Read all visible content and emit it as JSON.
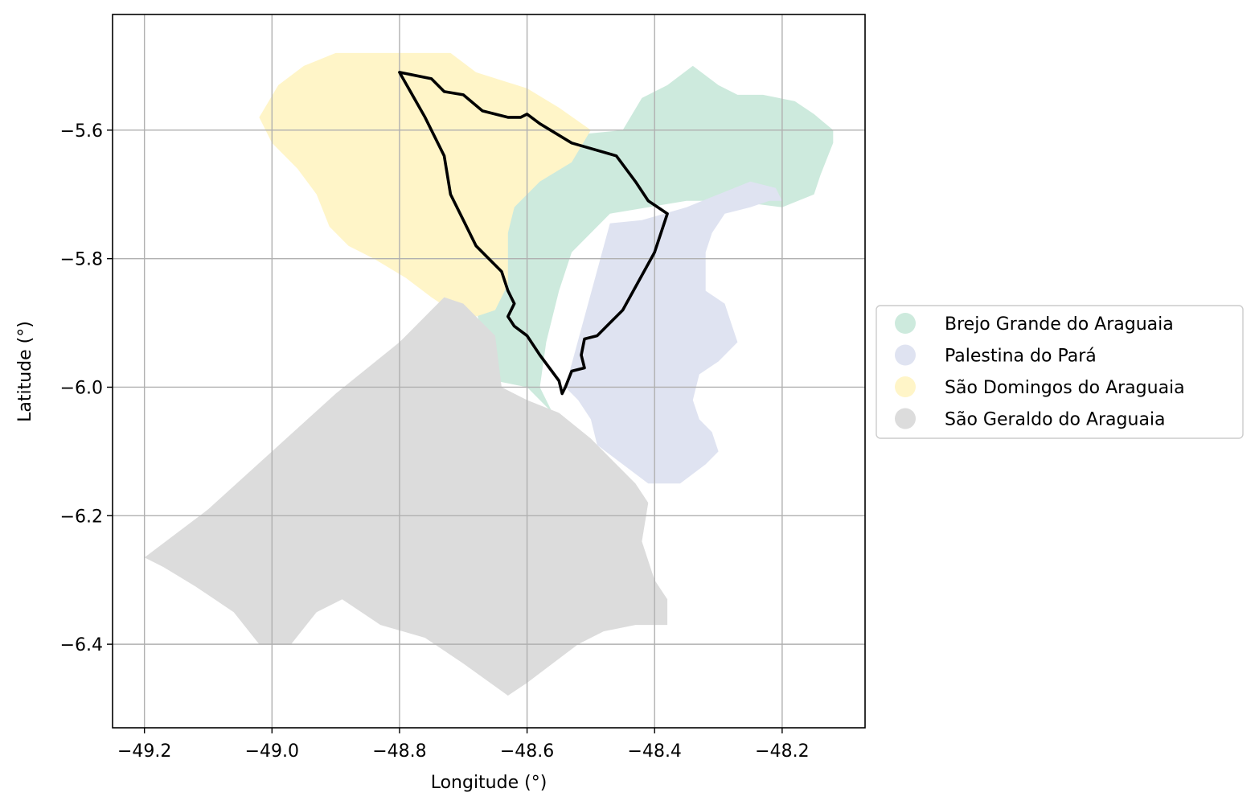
{
  "chart_data": {
    "type": "map",
    "xlabel": "Longitude (°)",
    "ylabel": "Latitude (°)",
    "xlim": [
      -49.25,
      -48.07
    ],
    "ylim": [
      -6.53,
      -5.42
    ],
    "xticks": [
      -49.2,
      -49.0,
      -48.8,
      -48.6,
      -48.4,
      -48.2
    ],
    "yticks": [
      -5.6,
      -5.8,
      -6.0,
      -6.2,
      -6.4
    ],
    "xtick_labels": [
      "−49.2",
      "−49.0",
      "−48.8",
      "−48.6",
      "−48.4",
      "−48.2"
    ],
    "ytick_labels": [
      "−5.6",
      "−5.8",
      "−6.0",
      "−6.2",
      "−6.4"
    ],
    "grid": true,
    "legend_position": "right",
    "regions": [
      {
        "name": "Brejo Grande do Araguaia",
        "color": "#cdeadd",
        "polygon": [
          [
            -48.73,
            -5.64
          ],
          [
            -48.66,
            -5.62
          ],
          [
            -48.55,
            -5.61
          ],
          [
            -48.45,
            -5.6
          ],
          [
            -48.42,
            -5.55
          ],
          [
            -48.38,
            -5.53
          ],
          [
            -48.34,
            -5.5
          ],
          [
            -48.3,
            -5.53
          ],
          [
            -48.27,
            -5.545
          ],
          [
            -48.23,
            -5.545
          ],
          [
            -48.18,
            -5.555
          ],
          [
            -48.15,
            -5.575
          ],
          [
            -48.12,
            -5.6
          ],
          [
            -48.12,
            -5.62
          ],
          [
            -48.14,
            -5.67
          ],
          [
            -48.15,
            -5.7
          ],
          [
            -48.2,
            -5.72
          ],
          [
            -48.28,
            -5.71
          ],
          [
            -48.35,
            -5.71
          ],
          [
            -48.41,
            -5.72
          ],
          [
            -48.47,
            -5.73
          ],
          [
            -48.53,
            -5.79
          ],
          [
            -48.55,
            -5.85
          ],
          [
            -48.57,
            -5.93
          ],
          [
            -48.58,
            -6.0
          ],
          [
            -48.56,
            -6.04
          ],
          [
            -48.6,
            -6.0
          ],
          [
            -48.65,
            -5.99
          ],
          [
            -48.68,
            -5.88
          ],
          [
            -48.65,
            -5.8
          ],
          [
            -48.62,
            -5.72
          ]
        ]
      },
      {
        "name": "Palestina do Pará",
        "color": "#dfe3f1",
        "polygon": [
          [
            -48.47,
            -5.745
          ],
          [
            -48.42,
            -5.74
          ],
          [
            -48.35,
            -5.72
          ],
          [
            -48.3,
            -5.7
          ],
          [
            -48.25,
            -5.68
          ],
          [
            -48.21,
            -5.69
          ],
          [
            -48.2,
            -5.71
          ],
          [
            -48.22,
            -5.71
          ],
          [
            -48.25,
            -5.72
          ],
          [
            -48.29,
            -5.73
          ],
          [
            -48.31,
            -5.76
          ],
          [
            -48.32,
            -5.79
          ],
          [
            -48.32,
            -5.85
          ],
          [
            -48.29,
            -5.87
          ],
          [
            -48.28,
            -5.9
          ],
          [
            -48.27,
            -5.93
          ],
          [
            -48.3,
            -5.96
          ],
          [
            -48.33,
            -5.98
          ],
          [
            -48.34,
            -6.02
          ],
          [
            -48.33,
            -6.05
          ],
          [
            -48.31,
            -6.07
          ],
          [
            -48.3,
            -6.1
          ],
          [
            -48.32,
            -6.12
          ],
          [
            -48.36,
            -6.15
          ],
          [
            -48.41,
            -6.15
          ],
          [
            -48.45,
            -6.12
          ],
          [
            -48.49,
            -6.09
          ],
          [
            -48.5,
            -6.05
          ],
          [
            -48.52,
            -6.02
          ],
          [
            -48.54,
            -6.0
          ]
        ]
      },
      {
        "name": "São Domingos do Araguaia",
        "color": "#fff5c8",
        "polygon": [
          [
            -48.9,
            -5.48
          ],
          [
            -48.8,
            -5.48
          ],
          [
            -48.72,
            -5.48
          ],
          [
            -48.68,
            -5.51
          ],
          [
            -48.6,
            -5.535
          ],
          [
            -48.55,
            -5.565
          ],
          [
            -48.5,
            -5.6
          ],
          [
            -48.53,
            -5.65
          ],
          [
            -48.58,
            -5.68
          ],
          [
            -48.62,
            -5.72
          ],
          [
            -48.63,
            -5.76
          ],
          [
            -48.63,
            -5.84
          ],
          [
            -48.65,
            -5.88
          ],
          [
            -48.68,
            -5.89
          ],
          [
            -48.72,
            -5.88
          ],
          [
            -48.75,
            -5.86
          ],
          [
            -48.79,
            -5.83
          ],
          [
            -48.84,
            -5.8
          ],
          [
            -48.88,
            -5.78
          ],
          [
            -48.91,
            -5.75
          ],
          [
            -48.93,
            -5.7
          ],
          [
            -48.96,
            -5.66
          ],
          [
            -49.0,
            -5.62
          ],
          [
            -49.02,
            -5.58
          ],
          [
            -48.99,
            -5.53
          ],
          [
            -48.95,
            -5.5
          ]
        ]
      },
      {
        "name": "São Geraldo do Araguaia",
        "color": "#dcdcdc",
        "polygon": [
          [
            -48.73,
            -5.86
          ],
          [
            -48.7,
            -5.87
          ],
          [
            -48.68,
            -5.89
          ],
          [
            -48.65,
            -5.92
          ],
          [
            -48.64,
            -6.0
          ],
          [
            -48.6,
            -6.02
          ],
          [
            -48.55,
            -6.04
          ],
          [
            -48.5,
            -6.08
          ],
          [
            -48.46,
            -6.12
          ],
          [
            -48.43,
            -6.15
          ],
          [
            -48.41,
            -6.18
          ],
          [
            -48.42,
            -6.24
          ],
          [
            -48.4,
            -6.3
          ],
          [
            -48.38,
            -6.33
          ],
          [
            -48.38,
            -6.37
          ],
          [
            -48.43,
            -6.37
          ],
          [
            -48.48,
            -6.38
          ],
          [
            -48.52,
            -6.4
          ],
          [
            -48.56,
            -6.43
          ],
          [
            -48.6,
            -6.46
          ],
          [
            -48.63,
            -6.48
          ],
          [
            -48.7,
            -6.43
          ],
          [
            -48.76,
            -6.39
          ],
          [
            -48.83,
            -6.37
          ],
          [
            -48.89,
            -6.33
          ],
          [
            -48.93,
            -6.35
          ],
          [
            -48.97,
            -6.4
          ],
          [
            -49.02,
            -6.4
          ],
          [
            -49.06,
            -6.35
          ],
          [
            -49.12,
            -6.31
          ],
          [
            -49.17,
            -6.28
          ],
          [
            -49.2,
            -6.265
          ],
          [
            -49.1,
            -6.19
          ],
          [
            -49.0,
            -6.1
          ],
          [
            -48.9,
            -6.01
          ],
          [
            -48.8,
            -5.93
          ]
        ]
      }
    ],
    "outline": {
      "color": "#000000",
      "polygon": [
        [
          -48.8,
          -5.51
        ],
        [
          -48.75,
          -5.52
        ],
        [
          -48.73,
          -5.54
        ],
        [
          -48.7,
          -5.545
        ],
        [
          -48.67,
          -5.57
        ],
        [
          -48.63,
          -5.58
        ],
        [
          -48.61,
          -5.58
        ],
        [
          -48.6,
          -5.575
        ],
        [
          -48.58,
          -5.59
        ],
        [
          -48.53,
          -5.62
        ],
        [
          -48.46,
          -5.64
        ],
        [
          -48.43,
          -5.68
        ],
        [
          -48.41,
          -5.71
        ],
        [
          -48.38,
          -5.73
        ],
        [
          -48.4,
          -5.79
        ],
        [
          -48.45,
          -5.88
        ],
        [
          -48.49,
          -5.92
        ],
        [
          -48.51,
          -5.925
        ],
        [
          -48.515,
          -5.95
        ],
        [
          -48.51,
          -5.97
        ],
        [
          -48.53,
          -5.975
        ],
        [
          -48.54,
          -6.0
        ],
        [
          -48.545,
          -6.01
        ],
        [
          -48.55,
          -5.99
        ],
        [
          -48.58,
          -5.95
        ],
        [
          -48.6,
          -5.92
        ],
        [
          -48.62,
          -5.905
        ],
        [
          -48.63,
          -5.89
        ],
        [
          -48.62,
          -5.87
        ],
        [
          -48.63,
          -5.85
        ],
        [
          -48.64,
          -5.82
        ],
        [
          -48.66,
          -5.8
        ],
        [
          -48.68,
          -5.78
        ],
        [
          -48.7,
          -5.74
        ],
        [
          -48.72,
          -5.7
        ],
        [
          -48.73,
          -5.64
        ],
        [
          -48.76,
          -5.58
        ]
      ]
    }
  }
}
